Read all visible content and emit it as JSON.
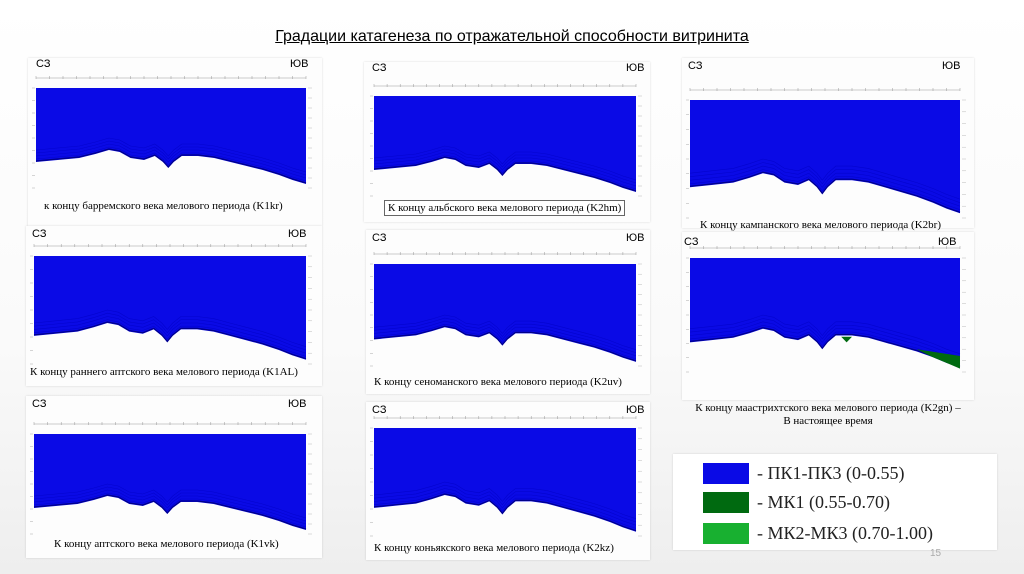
{
  "title": "Градации катагенеза по отражательной способности витринита",
  "colors": {
    "pk": "#0a0ae6",
    "mk1": "#006a10",
    "mk2": "#18b030"
  },
  "panels": [
    {
      "left": "СЗ",
      "right": "ЮВ",
      "caption": "к концу барремского века мелового периода (K1kr)"
    },
    {
      "left": "СЗ",
      "right": "ЮВ",
      "caption": "К концу альбского века мелового периода (K2hm)"
    },
    {
      "left": "СЗ",
      "right": "ЮВ",
      "caption": "К концу кампанского века мелового периода (K2br)"
    },
    {
      "left": "СЗ",
      "right": "ЮВ",
      "caption": "К концу раннего аптского века мелового периода (K1AL)"
    },
    {
      "left": "СЗ",
      "right": "ЮВ",
      "caption": "К концу сеноманского века мелового периода (K2uv)"
    },
    {
      "left": "СЗ",
      "right": "ЮВ",
      "caption": "К концу маастрихтского века мелового периода (K2gn) –",
      "caption2": "В настоящее время"
    },
    {
      "left": "СЗ",
      "right": "ЮВ",
      "caption": "К концу аптского века мелового периода (K1vk)"
    },
    {
      "left": "СЗ",
      "right": "ЮВ",
      "caption": "К концу коньякского века мелового периода (K2kz)"
    }
  ],
  "legend": [
    {
      "text": "- ПК1-ПК3 (0-0.55)",
      "color": "#0a0ae6"
    },
    {
      "text": "- МК1 (0.55-0.70)",
      "color": "#006a10"
    },
    {
      "text": "- МК2-МК3 (0.70-1.00)",
      "color": "#18b030"
    }
  ],
  "page_number": "15"
}
